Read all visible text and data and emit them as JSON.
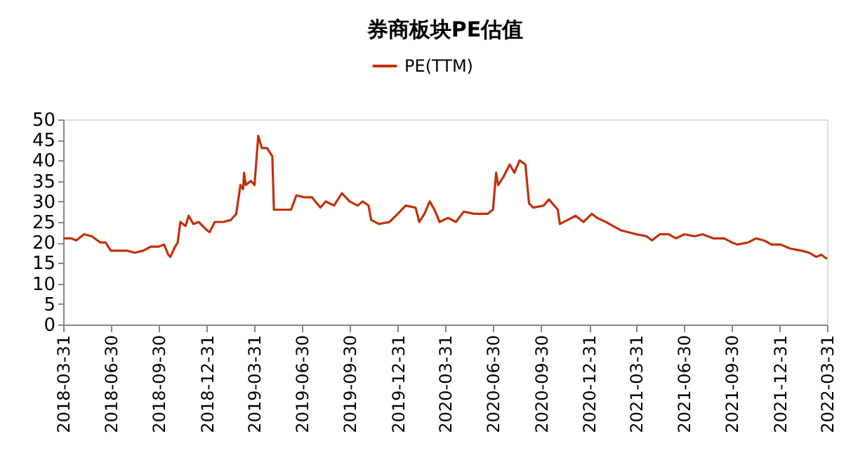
{
  "chart_data": {
    "type": "line",
    "title": "券商板块PE估值",
    "legend": "top",
    "xlim": [
      "2018-03-31",
      "2022-03-31"
    ],
    "xticks": [
      "2018-03-31",
      "2018-06-30",
      "2018-09-30",
      "2018-12-31",
      "2019-03-31",
      "2019-06-30",
      "2019-09-30",
      "2019-12-31",
      "2020-03-31",
      "2020-06-30",
      "2020-09-30",
      "2020-12-31",
      "2021-03-31",
      "2021-06-30",
      "2021-09-30",
      "2021-12-31",
      "2022-03-31"
    ],
    "ylim": [
      0,
      50
    ],
    "yticks": [
      0,
      5,
      10,
      15,
      20,
      25,
      30,
      35,
      40,
      45,
      50
    ],
    "grid": false,
    "x": [
      "2018-03-31",
      "2018-04-15",
      "2018-04-25",
      "2018-05-10",
      "2018-05-25",
      "2018-06-10",
      "2018-06-20",
      "2018-06-30",
      "2018-07-15",
      "2018-07-31",
      "2018-08-15",
      "2018-08-31",
      "2018-09-15",
      "2018-09-30",
      "2018-10-10",
      "2018-10-18",
      "2018-10-22",
      "2018-10-31",
      "2018-11-05",
      "2018-11-10",
      "2018-11-20",
      "2018-11-26",
      "2018-12-05",
      "2018-12-15",
      "2018-12-31",
      "2019-01-05",
      "2019-01-15",
      "2019-01-31",
      "2019-02-15",
      "2019-02-25",
      "2019-03-05",
      "2019-03-10",
      "2019-03-12",
      "2019-03-15",
      "2019-03-25",
      "2019-04-01",
      "2019-04-08",
      "2019-04-15",
      "2019-04-25",
      "2019-05-05",
      "2019-05-08",
      "2019-05-20",
      "2019-06-10",
      "2019-06-20",
      "2019-07-05",
      "2019-07-20",
      "2019-08-05",
      "2019-08-15",
      "2019-08-31",
      "2019-09-15",
      "2019-09-30",
      "2019-10-15",
      "2019-10-25",
      "2019-11-05",
      "2019-11-10",
      "2019-11-25",
      "2019-12-15",
      "2019-12-31",
      "2020-01-15",
      "2020-02-03",
      "2020-02-10",
      "2020-02-20",
      "2020-03-01",
      "2020-03-10",
      "2020-03-20",
      "2020-04-05",
      "2020-04-20",
      "2020-05-05",
      "2020-05-25",
      "2020-06-20",
      "2020-06-30",
      "2020-07-06",
      "2020-07-10",
      "2020-07-20",
      "2020-08-01",
      "2020-08-10",
      "2020-08-20",
      "2020-08-31",
      "2020-09-07",
      "2020-09-15",
      "2020-10-05",
      "2020-10-15",
      "2020-11-01",
      "2020-11-05",
      "2020-11-20",
      "2020-12-05",
      "2020-12-20",
      "2021-01-05",
      "2021-01-15",
      "2021-02-01",
      "2021-02-15",
      "2021-03-01",
      "2021-03-31",
      "2021-04-20",
      "2021-04-30",
      "2021-05-15",
      "2021-06-01",
      "2021-06-15",
      "2021-07-01",
      "2021-07-20",
      "2021-08-05",
      "2021-08-25",
      "2021-09-15",
      "2021-09-30",
      "2021-10-10",
      "2021-10-31",
      "2021-11-15",
      "2021-11-30",
      "2021-12-15",
      "2022-01-01",
      "2022-01-20",
      "2022-02-10",
      "2022-02-25",
      "2022-03-10",
      "2022-03-20",
      "2022-03-31"
    ],
    "series": [
      {
        "name": "PE(TTM)",
        "color": "#c0320a",
        "values": [
          21,
          21,
          20.5,
          22,
          21.5,
          20,
          20,
          18,
          18,
          18,
          17.5,
          18,
          19,
          19,
          19.5,
          17,
          16.5,
          19,
          20,
          25,
          24,
          26.5,
          24.5,
          25,
          23,
          22.5,
          25,
          25,
          25.5,
          27,
          34,
          33,
          37,
          34,
          35,
          34,
          46,
          43,
          43,
          41,
          28,
          28,
          28,
          31.5,
          31,
          31,
          28.5,
          30,
          29,
          32,
          30,
          29,
          30,
          29,
          25.5,
          24.5,
          25,
          27,
          29,
          28.5,
          25,
          27,
          30,
          28,
          25,
          26,
          25,
          27.5,
          27,
          27,
          28,
          37,
          34,
          36,
          39,
          37,
          40,
          39,
          29.5,
          28.5,
          29,
          30.5,
          28,
          24.5,
          25.5,
          26.5,
          25,
          27,
          26,
          25,
          24,
          23,
          22,
          21.5,
          20.5,
          22,
          22,
          21,
          22,
          21.5,
          22,
          21,
          21,
          20,
          19.5,
          20,
          21,
          20.5,
          19.5,
          19.5,
          18.5,
          18,
          17.5,
          16.5,
          17,
          16
        ]
      }
    ]
  }
}
